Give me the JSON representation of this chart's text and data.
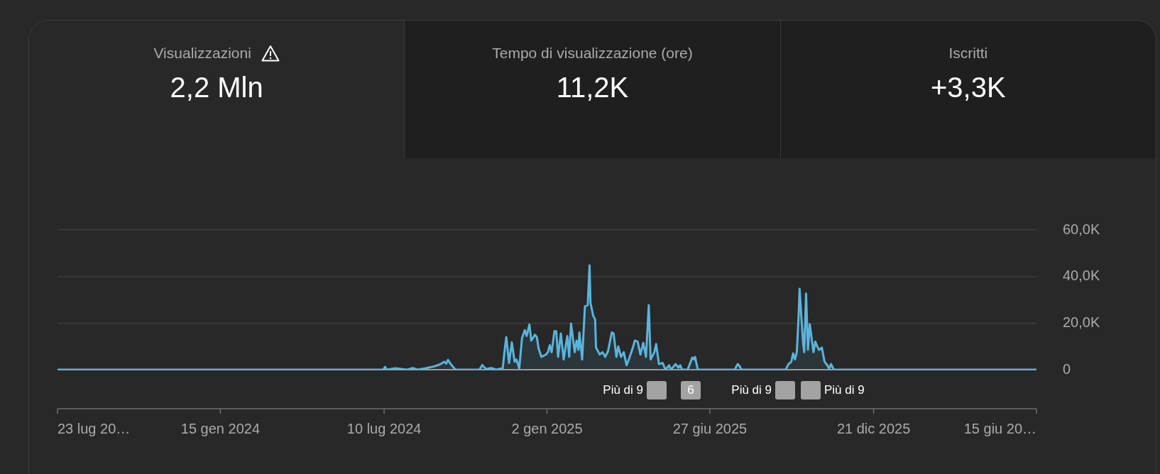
{
  "chart_data": [
    {
      "type": "other",
      "title": "Visualizzazioni",
      "annotations": [
        "2,2 Mln"
      ]
    },
    {
      "type": "other",
      "title": "Tempo di visualizzazione (ore)",
      "annotations": [
        "11,2K"
      ]
    },
    {
      "type": "other",
      "title": "Iscritti",
      "annotations": [
        "+3,3K"
      ]
    },
    {
      "type": "area",
      "color": "#5ab4dc",
      "x": [
        "2023-07-23",
        "2024-07-09",
        "2024-07-11",
        "2024-07-13",
        "2024-07-22",
        "2024-08-04",
        "2024-08-10",
        "2024-08-15",
        "2024-08-24",
        "2024-09-02",
        "2024-09-08",
        "2024-09-13",
        "2024-09-15",
        "2024-09-17",
        "2024-09-20",
        "2024-09-25",
        "2024-10-21",
        "2024-10-24",
        "2024-10-28",
        "2024-11-03",
        "2024-11-08",
        "2024-11-13",
        "2024-11-15",
        "2024-11-17",
        "2024-11-19",
        "2024-11-22",
        "2024-11-25",
        "2024-11-28",
        "2024-11-30",
        "2024-12-03",
        "2024-12-06",
        "2024-12-09",
        "2024-12-11",
        "2024-12-14",
        "2024-12-16",
        "2024-12-20",
        "2024-12-22",
        "2024-12-24",
        "2024-12-27",
        "2025-01-01",
        "2025-01-03",
        "2025-01-05",
        "2025-01-07",
        "2025-01-10",
        "2025-01-12",
        "2025-01-14",
        "2025-01-17",
        "2025-01-20",
        "2025-01-24",
        "2025-01-26",
        "2025-01-28",
        "2025-02-01",
        "2025-02-03",
        "2025-02-05",
        "2025-02-06",
        "2025-02-09",
        "2025-02-12",
        "2025-02-15",
        "2025-02-17",
        "2025-02-18",
        "2025-02-21",
        "2025-02-23",
        "2025-02-24",
        "2025-02-28",
        "2025-03-03",
        "2025-03-06",
        "2025-03-09",
        "2025-03-13",
        "2025-03-15",
        "2025-03-18",
        "2025-03-20",
        "2025-03-23",
        "2025-03-26",
        "2025-03-29",
        "2025-04-01",
        "2025-04-04",
        "2025-04-07",
        "2025-04-10",
        "2025-04-13",
        "2025-04-16",
        "2025-04-19",
        "2025-04-22",
        "2025-04-24",
        "2025-04-28",
        "2025-04-30",
        "2025-05-03",
        "2025-05-07",
        "2025-05-10",
        "2025-05-14",
        "2025-05-16",
        "2025-05-21",
        "2025-05-24",
        "2025-05-26",
        "2025-05-28",
        "2025-06-03",
        "2025-06-08",
        "2025-06-10",
        "2025-06-11",
        "2025-06-14",
        "2025-07-24",
        "2025-07-27",
        "2025-07-29",
        "2025-07-31",
        "2025-09-17",
        "2025-09-20",
        "2025-09-23",
        "2025-09-25",
        "2025-09-27",
        "2025-09-29",
        "2025-10-01",
        "2025-10-02",
        "2025-10-04",
        "2025-10-06",
        "2025-10-07",
        "2025-10-09",
        "2025-10-11",
        "2025-10-13",
        "2025-10-15",
        "2025-10-17",
        "2025-10-19",
        "2025-10-21",
        "2025-10-23",
        "2025-10-26",
        "2025-10-29",
        "2025-11-01",
        "2025-11-03",
        "2025-11-05",
        "2025-11-08",
        "2026-06-15"
      ],
      "values": [
        0,
        0,
        1200,
        0,
        600,
        0,
        700,
        0,
        600,
        1400,
        2200,
        3400,
        2600,
        4200,
        2400,
        0,
        0,
        2000,
        300,
        700,
        0,
        500,
        0,
        7500,
        14000,
        2900,
        11700,
        3400,
        4400,
        500,
        13500,
        17000,
        14500,
        19400,
        12500,
        15000,
        14000,
        9000,
        5500,
        6500,
        7500,
        10500,
        7500,
        16500,
        16500,
        5500,
        15500,
        4400,
        14500,
        5500,
        19800,
        7500,
        12500,
        8500,
        16000,
        4400,
        27200,
        27700,
        44800,
        28700,
        23100,
        21600,
        9500,
        6500,
        7500,
        5500,
        8000,
        16000,
        15500,
        5500,
        10000,
        5500,
        7500,
        1900,
        5000,
        8500,
        12500,
        12000,
        6500,
        11500,
        5500,
        27700,
        4400,
        7500,
        11000,
        2400,
        2900,
        0,
        1900,
        0,
        2400,
        900,
        1900,
        0,
        0,
        5200,
        4400,
        5500,
        0,
        0,
        2400,
        1600,
        0,
        0,
        2400,
        3400,
        7000,
        4400,
        7500,
        23600,
        34700,
        22100,
        10500,
        7500,
        32700,
        8500,
        19600,
        13500,
        7500,
        12000,
        10000,
        8500,
        9500,
        3400,
        1900,
        400,
        2400,
        0,
        0
      ],
      "xlim": [
        "2023-07-23",
        "2026-06-15"
      ],
      "xticks": [
        {
          "value": "2023-07-23",
          "label": "23 lug 20…"
        },
        {
          "value": "2024-01-15",
          "label": "15 gen 2024"
        },
        {
          "value": "2024-07-10",
          "label": "10 lug 2024"
        },
        {
          "value": "2025-01-02",
          "label": "2 gen 2025"
        },
        {
          "value": "2025-06-27",
          "label": "27 giu 2025"
        },
        {
          "value": "2025-12-21",
          "label": "21 dic 2025"
        },
        {
          "value": "2026-06-15",
          "label": "15 giu 20…"
        }
      ],
      "ylim": [
        0,
        60000
      ],
      "yticks": [
        0,
        {
          "value": 20000,
          "label": "20,0K"
        },
        {
          "value": 40000,
          "label": "40,0K"
        },
        {
          "value": 60000,
          "label": "60,0K"
        }
      ],
      "grid": "y",
      "annotations": [
        "Più di 9",
        "6",
        "Più di 9",
        "Più di 9"
      ]
    }
  ]
}
